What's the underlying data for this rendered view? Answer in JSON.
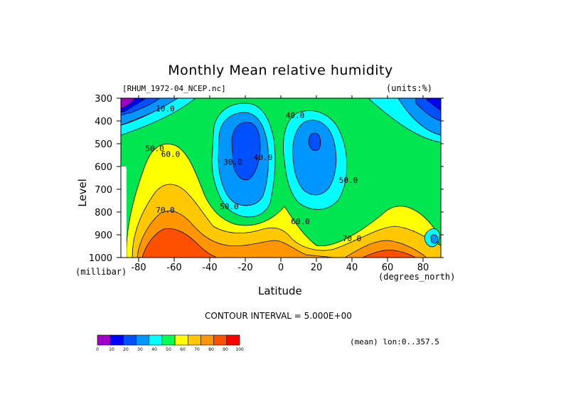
{
  "chart_data": {
    "type": "heatmap",
    "title": "Monthly Mean relative humidity",
    "file_label": "[RHUM_1972-04_NCEP.nc]",
    "units_label": "(units:%)",
    "xlabel": "Latitude",
    "x_units": "(degrees_north)",
    "ylabel": "Level",
    "y_units": "(millibar)",
    "xlim": [
      -90,
      90
    ],
    "ylim": [
      1000,
      300
    ],
    "x_ticks": [
      -80,
      -60,
      -40,
      -20,
      0,
      20,
      40,
      60,
      80
    ],
    "y_ticks": [
      300,
      400,
      500,
      600,
      700,
      800,
      900,
      1000
    ],
    "contour_interval_text": "CONTOUR INTERVAL = 5.000E+00",
    "mean_text": "(mean) lon:0..357.5",
    "contour_labels": [
      {
        "text": "10.0",
        "lat": -65,
        "level": 345
      },
      {
        "text": "50.0",
        "lat": -71,
        "level": 520
      },
      {
        "text": "60.0",
        "lat": -62,
        "level": 545
      },
      {
        "text": "70.0",
        "lat": -65,
        "level": 790
      },
      {
        "text": "30.0",
        "lat": -27,
        "level": 580
      },
      {
        "text": "40.0",
        "lat": -10,
        "level": 560
      },
      {
        "text": "40.0",
        "lat": 8,
        "level": 375
      },
      {
        "text": "50.0",
        "lat": -29,
        "level": 775
      },
      {
        "text": "50.0",
        "lat": 38,
        "level": 660
      },
      {
        "text": "60.0",
        "lat": 11,
        "level": 840
      },
      {
        "text": "70.0",
        "lat": 40,
        "level": 915
      }
    ],
    "colorbar": {
      "levels": [
        0,
        10,
        20,
        30,
        40,
        50,
        60,
        70,
        80,
        90,
        100
      ],
      "colors": [
        "#a000c8",
        "#0000ff",
        "#0050ff",
        "#0096ff",
        "#00ffff",
        "#00ff50",
        "#ffff00",
        "#ffc800",
        "#ff9600",
        "#ff5000",
        "#ff0000"
      ]
    },
    "background_color": "#00e650"
  }
}
